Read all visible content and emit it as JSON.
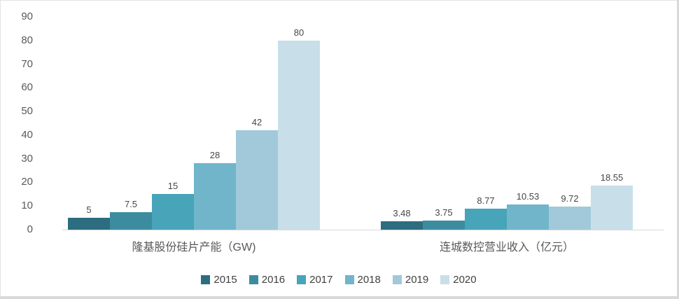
{
  "chart_data": {
    "type": "bar",
    "title": "",
    "xlabel": "",
    "ylabel": "",
    "grid": false,
    "legend_position": "bottom",
    "ylim": [
      0,
      90
    ],
    "yticks": [
      "0",
      "10",
      "20",
      "30",
      "40",
      "50",
      "60",
      "70",
      "80",
      "90"
    ],
    "categories": [
      "隆基股份硅片产能（GW)",
      "连城数控营业收入（亿元）"
    ],
    "series": [
      {
        "name": "2015",
        "color": "#2D6D80",
        "values": [
          5,
          3.48
        ]
      },
      {
        "name": "2016",
        "color": "#3C8CA0",
        "values": [
          7.5,
          3.75
        ]
      },
      {
        "name": "2017",
        "color": "#47A4B9",
        "values": [
          15,
          8.77
        ]
      },
      {
        "name": "2018",
        "color": "#70B5CA",
        "values": [
          28,
          10.53
        ]
      },
      {
        "name": "2019",
        "color": "#A1C9DA",
        "values": [
          42,
          9.72
        ]
      },
      {
        "name": "2020",
        "color": "#C8DFE9",
        "values": [
          80,
          18.55
        ]
      }
    ],
    "data_labels": [
      [
        "5",
        "7.5",
        "15",
        "28",
        "42",
        "80"
      ],
      [
        "3.48",
        "3.75",
        "8.77",
        "10.53",
        "9.72",
        "18.55"
      ]
    ]
  }
}
